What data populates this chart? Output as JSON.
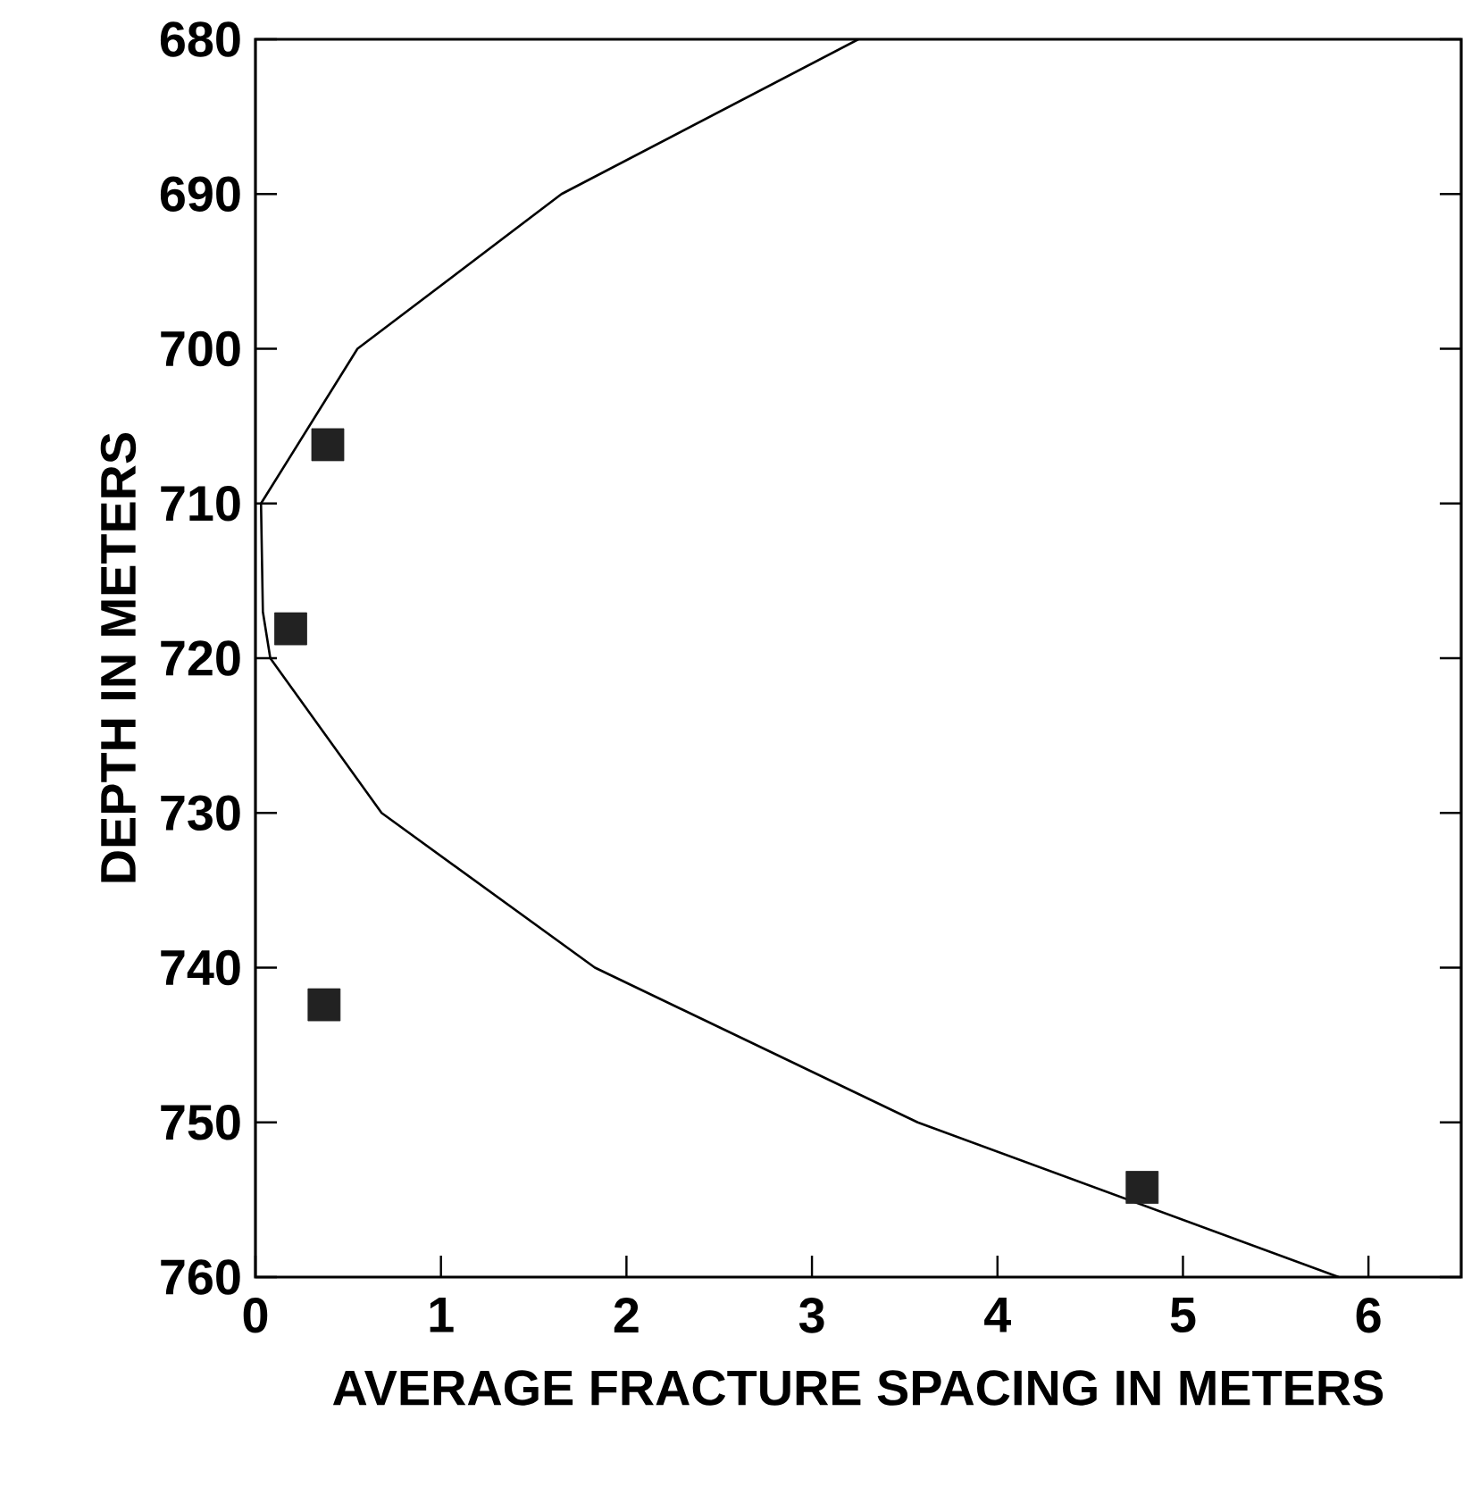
{
  "chart_data": {
    "type": "line",
    "xlabel": "AVERAGE FRACTURE SPACING IN METERS",
    "ylabel": "DEPTH IN METERS",
    "xlim": [
      0,
      6.5
    ],
    "xticks": [
      0,
      1,
      2,
      3,
      4,
      5,
      6
    ],
    "ylim": [
      760,
      680
    ],
    "yticks": [
      680,
      690,
      700,
      710,
      720,
      730,
      740,
      750,
      760
    ],
    "grid": false,
    "series": [
      {
        "color": "#000000",
        "marker": "none",
        "line_style": "solid",
        "x": [
          3.25,
          1.65,
          0.55,
          0.03,
          0.04,
          0.08,
          0.68,
          1.83,
          3.57,
          5.84
        ],
        "values": [
          680,
          690,
          700,
          710,
          717,
          720,
          730,
          740,
          750,
          760
        ]
      },
      {
        "type": "scatter",
        "color": "#222222",
        "marker": "square",
        "x": [
          0.39,
          0.19,
          0.37,
          4.78
        ],
        "values": [
          706.2,
          718.1,
          742.4,
          754.2
        ]
      }
    ]
  }
}
